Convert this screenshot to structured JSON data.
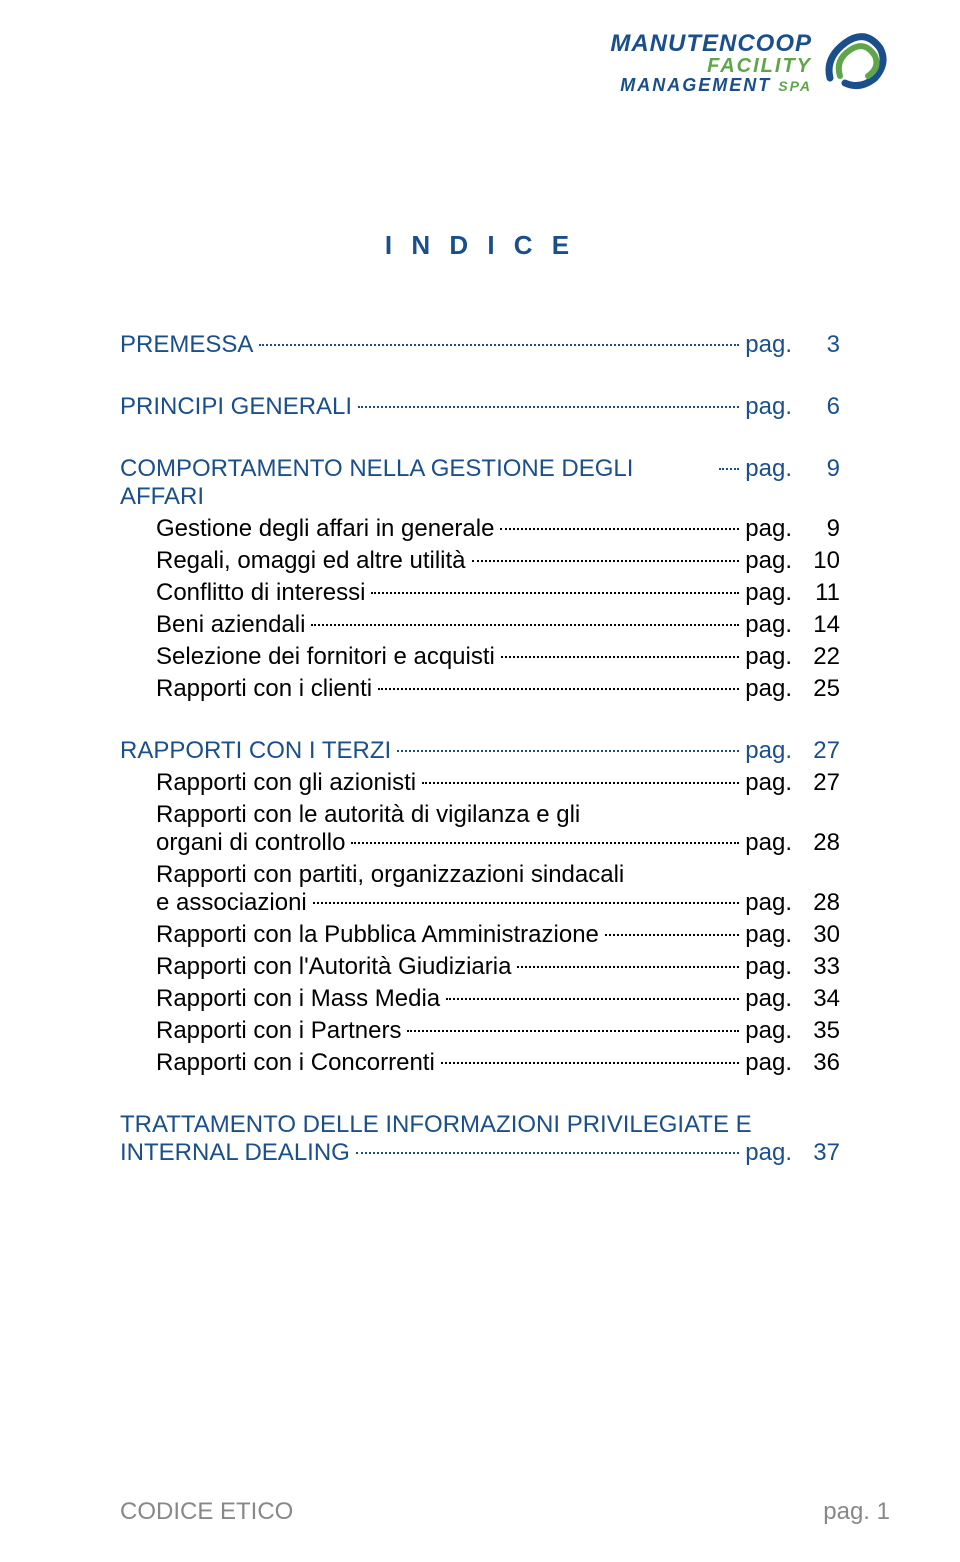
{
  "logo": {
    "line1": "MANUTENCOOP",
    "line2": "FACILITY",
    "line3": "MANAGEMENT",
    "suffix": "SPA",
    "color_primary": "#1a4f8c",
    "color_accent": "#5fa64b"
  },
  "title": "I N D I C E",
  "title_color": "#1a4f8c",
  "pag_label": "pag.",
  "toc": [
    {
      "type": "heading",
      "label": "PREMESSA",
      "page": "3",
      "indent": 0
    },
    {
      "type": "gap"
    },
    {
      "type": "heading",
      "label": "PRINCIPI GENERALI",
      "page": "6",
      "indent": 0
    },
    {
      "type": "gap"
    },
    {
      "type": "heading",
      "label": "COMPORTAMENTO NELLA GESTIONE DEGLI AFFARI",
      "page": "9",
      "indent": 0
    },
    {
      "type": "entry",
      "label": "Gestione degli affari in generale",
      "page": "9",
      "indent": 1
    },
    {
      "type": "entry",
      "label": "Regali, omaggi ed altre utilità",
      "page": "10",
      "indent": 1
    },
    {
      "type": "entry",
      "label": "Conflitto di interessi",
      "page": "11",
      "indent": 1
    },
    {
      "type": "entry",
      "label": "Beni aziendali",
      "page": "14",
      "indent": 1
    },
    {
      "type": "entry",
      "label": "Selezione dei fornitori e acquisti",
      "page": "22",
      "indent": 1
    },
    {
      "type": "entry",
      "label": "Rapporti con i clienti",
      "page": "25",
      "indent": 1
    },
    {
      "type": "gap"
    },
    {
      "type": "heading",
      "label": "RAPPORTI CON I TERZI",
      "page": "27",
      "indent": 0
    },
    {
      "type": "entry",
      "label": "Rapporti con gli azionisti",
      "page": "27",
      "indent": 1
    },
    {
      "type": "entry",
      "label_line1": "Rapporti con le autorità di vigilanza e gli",
      "label_line2": "organi di controllo",
      "page": "28",
      "indent": 1,
      "multiline": true
    },
    {
      "type": "entry",
      "label_line1": "Rapporti con partiti, organizzazioni sindacali",
      "label_line2": "e associazioni",
      "page": "28",
      "indent": 1,
      "multiline": true
    },
    {
      "type": "entry",
      "label": "Rapporti con la Pubblica Amministrazione",
      "page": "30",
      "indent": 1
    },
    {
      "type": "entry",
      "label": "Rapporti con l'Autorità Giudiziaria",
      "page": "33",
      "indent": 1
    },
    {
      "type": "entry",
      "label": "Rapporti con i Mass Media",
      "page": "34",
      "indent": 1
    },
    {
      "type": "entry",
      "label": "Rapporti con i Partners",
      "page": "35",
      "indent": 1
    },
    {
      "type": "entry",
      "label": "Rapporti con i Concorrenti",
      "page": "36",
      "indent": 1
    },
    {
      "type": "gap"
    },
    {
      "type": "heading",
      "label_line1": "TRATTAMENTO DELLE INFORMAZIONI PRIVILEGIATE E",
      "label_line2": "INTERNAL DEALING",
      "page": "37",
      "indent": 0,
      "multiline": true
    }
  ],
  "footer": {
    "left": "CODICE ETICO",
    "right": "pag. 1",
    "color": "#888888"
  }
}
